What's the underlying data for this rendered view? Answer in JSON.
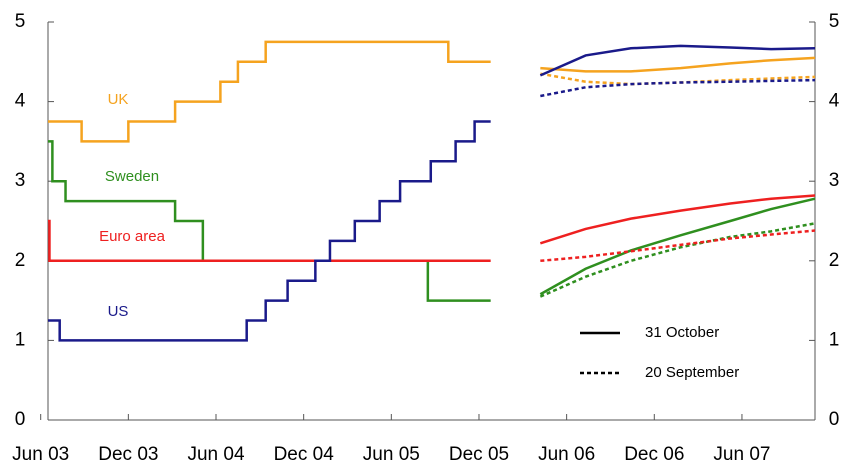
{
  "chart_data": {
    "type": "line",
    "step": true,
    "xlim": [
      0.5,
      53
    ],
    "ylim": [
      0,
      5
    ],
    "y2lim": [
      0,
      5
    ],
    "yticks": [
      0,
      1,
      2,
      3,
      4,
      5
    ],
    "y2ticks": [
      0,
      1,
      2,
      3,
      4,
      5
    ],
    "xticks": [
      {
        "value": 0,
        "label": "Jun 03"
      },
      {
        "value": 6,
        "label": "Dec 03"
      },
      {
        "value": 12,
        "label": "Jun 04"
      },
      {
        "value": 18,
        "label": "Dec 04"
      },
      {
        "value": 24,
        "label": "Jun 05"
      },
      {
        "value": 30,
        "label": "Dec 05"
      },
      {
        "value": 36,
        "label": "Jun 06"
      },
      {
        "value": 42,
        "label": "Dec 06"
      },
      {
        "value": 48,
        "label": "Jun 07"
      }
    ],
    "forward_x": [
      34.2,
      37.3,
      40.4,
      43.8,
      47.2,
      50,
      53
    ],
    "legend": [
      {
        "label": "31 October",
        "style": "solid"
      },
      {
        "label": "20 September",
        "style": "dotted"
      }
    ],
    "series": [
      {
        "name": "UK",
        "color": "#f5a31f",
        "x": [
          0.5,
          2.8,
          6,
          9.2,
          12.3,
          13.5,
          15.4,
          27.9,
          30.8
        ],
        "values": [
          3.75,
          3.5,
          3.75,
          4,
          4.25,
          4.5,
          4.75,
          4.5,
          4.5
        ],
        "forwards": [
          {
            "values": [
              4.42,
              4.38,
              4.38,
              4.42,
              4.48,
              4.52,
              4.55
            ]
          },
          {
            "values": [
              4.35,
              4.25,
              4.22,
              4.24,
              4.27,
              4.29,
              4.31
            ]
          }
        ]
      },
      {
        "name": "Sweden",
        "color": "#2f8f1f",
        "x": [
          0.5,
          0.8,
          1.7,
          9.2,
          11.1,
          26.5,
          30.8
        ],
        "values": [
          3.5,
          3,
          2.75,
          2.5,
          2,
          1.5,
          1.5
        ],
        "forwards": [
          {
            "values": [
              1.58,
              1.9,
              2.13,
              2.32,
              2.5,
              2.65,
              2.78
            ]
          },
          {
            "values": [
              1.55,
              1.8,
              2.0,
              2.17,
              2.3,
              2.37,
              2.47
            ]
          }
        ]
      },
      {
        "name": "Euro area",
        "color": "#ee2020",
        "x": [
          0.5,
          0.6,
          30.8
        ],
        "values": [
          2.5,
          2,
          2
        ],
        "forwards": [
          {
            "values": [
              2.22,
              2.4,
              2.53,
              2.63,
              2.72,
              2.78,
              2.82
            ]
          },
          {
            "values": [
              2.0,
              2.05,
              2.12,
              2.2,
              2.28,
              2.33,
              2.38
            ]
          }
        ]
      },
      {
        "name": "US",
        "color": "#1a1a8a",
        "x": [
          0.5,
          1.3,
          14.1,
          15.4,
          16.9,
          18.8,
          19.8,
          21.5,
          23.2,
          24.6,
          26.7,
          28.4,
          29.7,
          30.8
        ],
        "values": [
          1.25,
          1,
          1.25,
          1.5,
          1.75,
          2,
          2.25,
          2.5,
          2.75,
          3,
          3.25,
          3.5,
          3.75,
          3.75
        ],
        "forwards": [
          {
            "values": [
              4.33,
              4.58,
              4.67,
              4.7,
              4.68,
              4.66,
              4.67
            ]
          },
          {
            "values": [
              4.07,
              4.18,
              4.22,
              4.24,
              4.25,
              4.26,
              4.27
            ]
          }
        ]
      }
    ]
  }
}
